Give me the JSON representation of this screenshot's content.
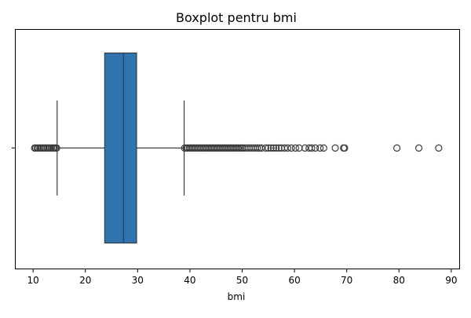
{
  "chart_data": {
    "type": "boxplot",
    "title": "Boxplot pentru bmi",
    "xlabel": "bmi",
    "ylabel": "",
    "xlim": [
      6.6,
      91.6
    ],
    "x_ticks": [
      10,
      20,
      30,
      40,
      50,
      60,
      70,
      80,
      90
    ],
    "y_ticks": [
      ""
    ],
    "grid": false,
    "orientation": "horizontal",
    "series": [
      {
        "box": {
          "whisker_low": 14.6,
          "q1": 23.7,
          "median": 27.3,
          "q3": 29.8,
          "whisker_high": 38.9
        },
        "outliers_low": [
          10.3,
          10.5,
          10.8,
          11.0,
          11.3,
          11.6,
          11.9,
          12.1,
          12.4,
          12.7,
          13.0,
          13.2,
          13.5,
          13.8,
          14.0,
          14.3,
          14.5
        ],
        "outliers_high": [
          39.0,
          39.3,
          39.6,
          39.9,
          40.2,
          40.5,
          40.8,
          41.1,
          41.4,
          41.7,
          42.0,
          42.3,
          42.6,
          42.9,
          43.2,
          43.5,
          43.8,
          44.1,
          44.4,
          44.7,
          45.0,
          45.3,
          45.6,
          45.9,
          46.2,
          46.5,
          46.8,
          47.1,
          47.4,
          47.7,
          48.0,
          48.3,
          48.6,
          48.9,
          49.2,
          49.5,
          49.8,
          50.1,
          50.5,
          50.9,
          51.3,
          51.7,
          52.1,
          52.5,
          52.9,
          53.3,
          53.7,
          54.5,
          55.0,
          55.5,
          56.0,
          56.5,
          57.0,
          57.5,
          58.1,
          58.7,
          59.4,
          60.2,
          60.9,
          62.0,
          62.8,
          63.3,
          64.0,
          64.9,
          65.6,
          67.8,
          69.4,
          69.6,
          79.6,
          83.8,
          87.6
        ]
      }
    ],
    "colors": {
      "box_fill": "#2f74ad",
      "line": "#3d3d3d",
      "spine": "#000000"
    }
  }
}
